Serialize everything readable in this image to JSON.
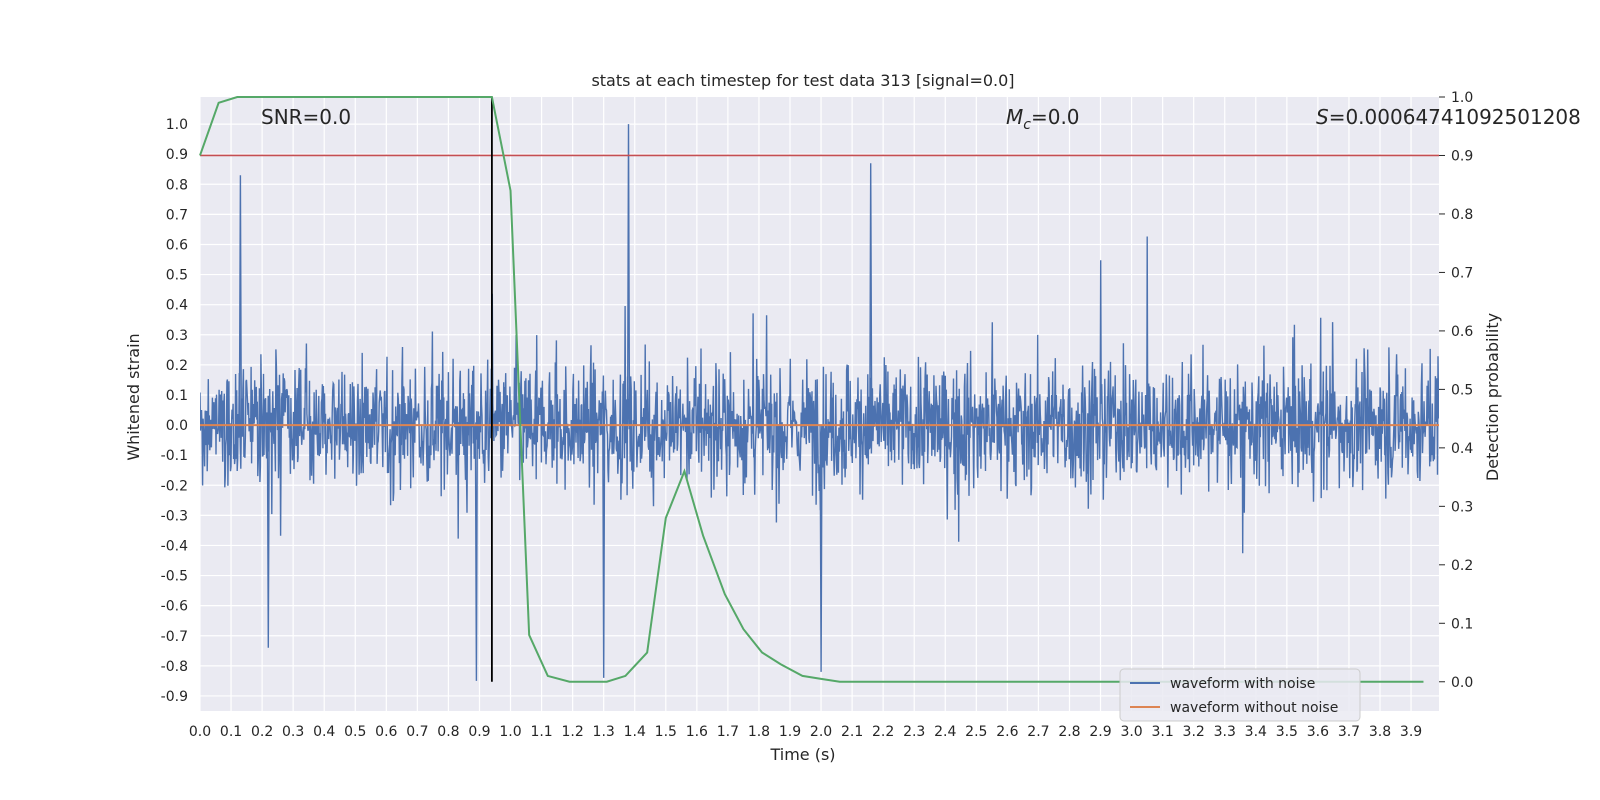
{
  "chart_data": {
    "type": "line",
    "title": "stats at each timestep for test data 313 [signal=0.0]",
    "xlabel": "Time (s)",
    "ylabel_left": "Whitened strain",
    "ylabel_right": "Detection probability",
    "xlim": [
      0.0,
      3.99
    ],
    "ylim_left": [
      -0.95,
      1.09
    ],
    "ylim_right": [
      -0.05,
      1.0
    ],
    "x_ticks": [
      "0.0",
      "0.1",
      "0.2",
      "0.3",
      "0.4",
      "0.5",
      "0.6",
      "0.7",
      "0.8",
      "0.9",
      "1.0",
      "1.1",
      "1.2",
      "1.3",
      "1.4",
      "1.5",
      "1.6",
      "1.7",
      "1.8",
      "1.9",
      "2.0",
      "2.1",
      "2.2",
      "2.3",
      "2.4",
      "2.5",
      "2.6",
      "2.7",
      "2.8",
      "2.9",
      "3.0",
      "3.1",
      "3.2",
      "3.3",
      "3.4",
      "3.5",
      "3.6",
      "3.7",
      "3.8",
      "3.9"
    ],
    "y_ticks_left": [
      "1.0",
      "0.9",
      "0.8",
      "0.7",
      "0.6",
      "0.5",
      "0.4",
      "0.3",
      "0.2",
      "0.1",
      "0.0",
      "-0.1",
      "-0.2",
      "-0.3",
      "-0.4",
      "-0.5",
      "-0.6",
      "-0.7",
      "-0.8",
      "-0.9"
    ],
    "y_ticks_right": [
      "1.0",
      "0.9",
      "0.8",
      "0.7",
      "0.6",
      "0.5",
      "0.4",
      "0.3",
      "0.2",
      "0.1",
      "0.0"
    ],
    "grid": true,
    "legend_position": "lower-right",
    "annotations": {
      "snr": "SNR=0.0",
      "mc_symbol": "M",
      "mc_sub": "c",
      "mc_value": "=0.0",
      "s_symbol": "S",
      "s_value": "=0.00064741092501208"
    },
    "series": [
      {
        "name": "waveform with noise",
        "color": "#4c72b0",
        "axis": "left",
        "description_envelope": "dense noise, amplitude roughly -0.85 to 1.0",
        "notable_peaks": [
          {
            "x": 0.13,
            "y": 0.83
          },
          {
            "x": 1.38,
            "y": 1.0
          },
          {
            "x": 2.16,
            "y": 0.87
          },
          {
            "x": 0.22,
            "y": -0.74
          },
          {
            "x": 0.89,
            "y": -0.85
          },
          {
            "x": 1.3,
            "y": -0.84
          },
          {
            "x": 2.0,
            "y": -0.82
          }
        ]
      },
      {
        "name": "waveform without noise",
        "color": "#dd8452",
        "axis": "left",
        "x": [
          0.0,
          3.99
        ],
        "y": [
          0.0,
          0.0
        ]
      },
      {
        "color": "#55a868",
        "axis": "right",
        "x": [
          0.0,
          0.06,
          0.12,
          0.19,
          0.25,
          0.31,
          0.37,
          0.44,
          0.5,
          0.56,
          0.62,
          0.69,
          0.75,
          0.81,
          0.87,
          0.94,
          1.0,
          1.06,
          1.12,
          1.19,
          1.25,
          1.31,
          1.37,
          1.44,
          1.5,
          1.56,
          1.62,
          1.69,
          1.75,
          1.81,
          1.87,
          1.94,
          2.0,
          2.06,
          2.12,
          2.2,
          2.4,
          2.6,
          2.8,
          3.0,
          3.2,
          3.4,
          3.6,
          3.8,
          3.94
        ],
        "y": [
          0.9,
          0.99,
          1.0,
          1.0,
          1.0,
          1.0,
          1.0,
          1.0,
          1.0,
          1.0,
          1.0,
          1.0,
          1.0,
          1.0,
          1.0,
          1.0,
          0.84,
          0.08,
          0.01,
          0.0,
          0.0,
          0.0,
          0.01,
          0.05,
          0.28,
          0.36,
          0.25,
          0.15,
          0.09,
          0.05,
          0.03,
          0.01,
          0.005,
          0.0,
          0.0,
          0.0,
          0.0,
          0.0,
          0.0,
          0.0,
          0.0,
          0.0,
          0.0,
          0.0,
          0.0
        ]
      }
    ],
    "reference_lines": [
      {
        "orientation": "horizontal",
        "axis": "right",
        "value": 0.9,
        "color": "#c44e52"
      },
      {
        "orientation": "vertical",
        "x": 0.94,
        "color": "#000000",
        "y_range_right": [
          0.0,
          1.0
        ]
      }
    ]
  }
}
